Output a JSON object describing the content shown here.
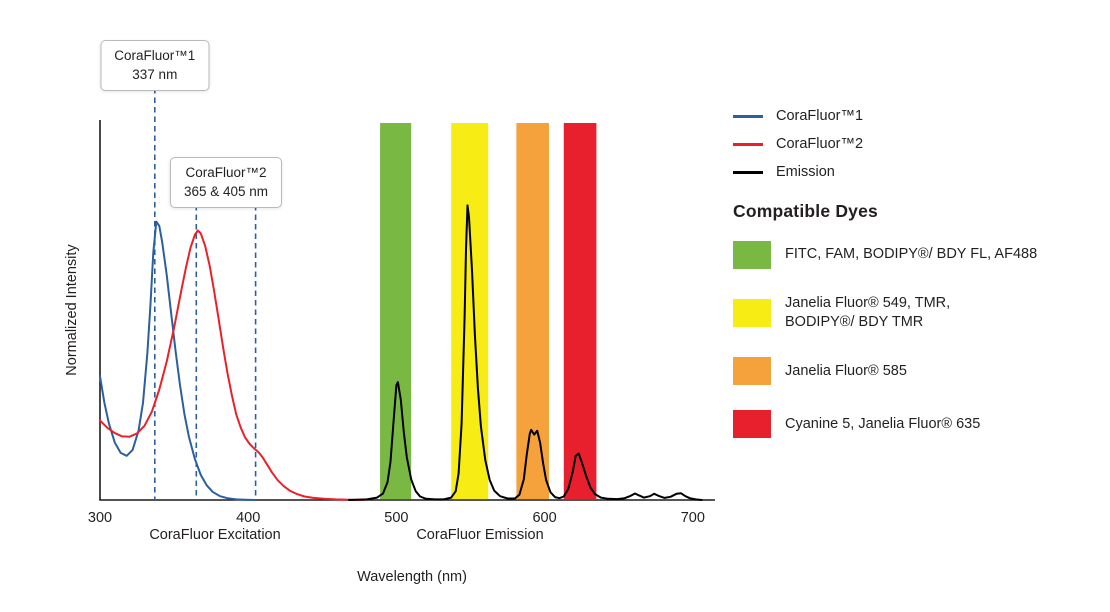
{
  "chart_data": {
    "type": "line",
    "title": "",
    "xlabel": "Wavelength (nm)",
    "ylabel": "Normalized Intensity",
    "xlim": [
      300,
      715
    ],
    "ylim": [
      0,
      1.29
    ],
    "x_ticks": [
      300,
      400,
      500,
      600,
      700
    ],
    "grid": false,
    "legend_position": "right",
    "marker_color": "#2b5f9e",
    "section_labels": [
      {
        "text": "CoraFluor Excitation"
      },
      {
        "text": "CoraFluor Emission"
      }
    ],
    "annotations": [
      {
        "line1": "CoraFluor™1",
        "line2": "337 nm",
        "marker_nms": [
          337
        ]
      },
      {
        "line1": "CoraFluor™2",
        "line2": "365 & 405 nm",
        "marker_nms": [
          365,
          405
        ]
      }
    ],
    "bands": [
      {
        "name": "green",
        "color": "#79b943",
        "nm": [
          489,
          510
        ]
      },
      {
        "name": "yellow",
        "color": "#f7ec13",
        "nm": [
          537,
          562
        ]
      },
      {
        "name": "orange",
        "color": "#f5a23c",
        "nm": [
          581,
          603
        ]
      },
      {
        "name": "red",
        "color": "#e8202d",
        "nm": [
          613,
          635
        ]
      }
    ],
    "series": [
      {
        "name": "CoraFluor™1",
        "role": "excitation",
        "color": "#2b5f9e",
        "points": [
          [
            300,
            0.42
          ],
          [
            303,
            0.33
          ],
          [
            306,
            0.26
          ],
          [
            310,
            0.195
          ],
          [
            314,
            0.16
          ],
          [
            318,
            0.15
          ],
          [
            322,
            0.17
          ],
          [
            326,
            0.235
          ],
          [
            329,
            0.33
          ],
          [
            332,
            0.5
          ],
          [
            334,
            0.66
          ],
          [
            336,
            0.84
          ],
          [
            338,
            0.945
          ],
          [
            340,
            0.93
          ],
          [
            342,
            0.875
          ],
          [
            345,
            0.765
          ],
          [
            348,
            0.635
          ],
          [
            351,
            0.505
          ],
          [
            354,
            0.39
          ],
          [
            357,
            0.29
          ],
          [
            360,
            0.215
          ],
          [
            364,
            0.14
          ],
          [
            368,
            0.085
          ],
          [
            372,
            0.05
          ],
          [
            376,
            0.028
          ],
          [
            381,
            0.013
          ],
          [
            386,
            0.006
          ],
          [
            392,
            0.002
          ],
          [
            398,
            0.001
          ],
          [
            404,
            0
          ]
        ]
      },
      {
        "name": "CoraFluor™2",
        "role": "excitation",
        "color": "#ed1f29",
        "points": [
          [
            300,
            0.27
          ],
          [
            305,
            0.245
          ],
          [
            310,
            0.227
          ],
          [
            315,
            0.216
          ],
          [
            320,
            0.215
          ],
          [
            325,
            0.226
          ],
          [
            330,
            0.252
          ],
          [
            335,
            0.3
          ],
          [
            340,
            0.375
          ],
          [
            345,
            0.47
          ],
          [
            350,
            0.585
          ],
          [
            355,
            0.715
          ],
          [
            358,
            0.79
          ],
          [
            361,
            0.855
          ],
          [
            364,
            0.9
          ],
          [
            366,
            0.915
          ],
          [
            368,
            0.905
          ],
          [
            371,
            0.862
          ],
          [
            374,
            0.795
          ],
          [
            377,
            0.71
          ],
          [
            380,
            0.615
          ],
          [
            383,
            0.52
          ],
          [
            386,
            0.432
          ],
          [
            389,
            0.355
          ],
          [
            392,
            0.29
          ],
          [
            395,
            0.245
          ],
          [
            398,
            0.212
          ],
          [
            401,
            0.19
          ],
          [
            404,
            0.175
          ],
          [
            407,
            0.162
          ],
          [
            410,
            0.143
          ],
          [
            413,
            0.118
          ],
          [
            416,
            0.094
          ],
          [
            420,
            0.067
          ],
          [
            424,
            0.047
          ],
          [
            428,
            0.032
          ],
          [
            433,
            0.02
          ],
          [
            438,
            0.012
          ],
          [
            444,
            0.007
          ],
          [
            451,
            0.004
          ],
          [
            459,
            0.002
          ],
          [
            468,
            0.001
          ],
          [
            478,
            0
          ]
        ]
      },
      {
        "name": "Emission",
        "role": "emission",
        "color": "#000000",
        "points": [
          [
            468,
            0
          ],
          [
            480,
            0.002
          ],
          [
            487,
            0.008
          ],
          [
            491,
            0.022
          ],
          [
            494,
            0.06
          ],
          [
            496,
            0.13
          ],
          [
            498,
            0.26
          ],
          [
            500,
            0.39
          ],
          [
            501,
            0.4
          ],
          [
            503,
            0.34
          ],
          [
            505,
            0.23
          ],
          [
            507,
            0.145
          ],
          [
            510,
            0.07
          ],
          [
            513,
            0.03
          ],
          [
            516,
            0.012
          ],
          [
            520,
            0.004
          ],
          [
            526,
            0.002
          ],
          [
            532,
            0.002
          ],
          [
            537,
            0.008
          ],
          [
            540,
            0.03
          ],
          [
            542,
            0.09
          ],
          [
            544,
            0.26
          ],
          [
            546,
            0.62
          ],
          [
            547,
            0.85
          ],
          [
            548,
            1.0
          ],
          [
            549,
            0.96
          ],
          [
            551,
            0.78
          ],
          [
            553,
            0.56
          ],
          [
            555,
            0.38
          ],
          [
            557,
            0.25
          ],
          [
            560,
            0.135
          ],
          [
            563,
            0.068
          ],
          [
            566,
            0.032
          ],
          [
            570,
            0.013
          ],
          [
            575,
            0.005
          ],
          [
            580,
            0.005
          ],
          [
            583,
            0.018
          ],
          [
            586,
            0.07
          ],
          [
            588,
            0.155
          ],
          [
            590,
            0.225
          ],
          [
            591,
            0.238
          ],
          [
            593,
            0.222
          ],
          [
            595,
            0.235
          ],
          [
            597,
            0.195
          ],
          [
            599,
            0.125
          ],
          [
            601,
            0.068
          ],
          [
            604,
            0.026
          ],
          [
            607,
            0.01
          ],
          [
            610,
            0.006
          ],
          [
            613,
            0.012
          ],
          [
            616,
            0.038
          ],
          [
            619,
            0.095
          ],
          [
            621,
            0.15
          ],
          [
            623,
            0.158
          ],
          [
            625,
            0.13
          ],
          [
            628,
            0.082
          ],
          [
            631,
            0.042
          ],
          [
            634,
            0.02
          ],
          [
            638,
            0.008
          ],
          [
            643,
            0.004
          ],
          [
            649,
            0.003
          ],
          [
            654,
            0.006
          ],
          [
            658,
            0.014
          ],
          [
            661,
            0.022
          ],
          [
            664,
            0.015
          ],
          [
            667,
            0.008
          ],
          [
            671,
            0.013
          ],
          [
            674,
            0.021
          ],
          [
            677,
            0.014
          ],
          [
            681,
            0.007
          ],
          [
            685,
            0.011
          ],
          [
            689,
            0.021
          ],
          [
            692,
            0.023
          ],
          [
            695,
            0.013
          ],
          [
            698,
            0.006
          ],
          [
            702,
            0.002
          ],
          [
            706,
            0
          ]
        ]
      }
    ]
  },
  "legend": {
    "series": [
      {
        "label": "CoraFluor™1",
        "color": "#2b5f9e"
      },
      {
        "label": "CoraFluor™2",
        "color": "#ed1f29"
      },
      {
        "label": "Emission",
        "color": "#000000"
      }
    ],
    "dyes_heading": "Compatible Dyes",
    "dyes": [
      {
        "color": "#79b943",
        "label": "FITC, FAM, BODIPY®/ BDY FL, AF488"
      },
      {
        "color": "#f7ec13",
        "label": "Janelia Fluor® 549, TMR,\nBODIPY®/ BDY TMR"
      },
      {
        "color": "#f5a23c",
        "label": "Janelia Fluor® 585"
      },
      {
        "color": "#e8202d",
        "label": "Cyanine 5, Janelia Fluor® 635"
      }
    ]
  }
}
